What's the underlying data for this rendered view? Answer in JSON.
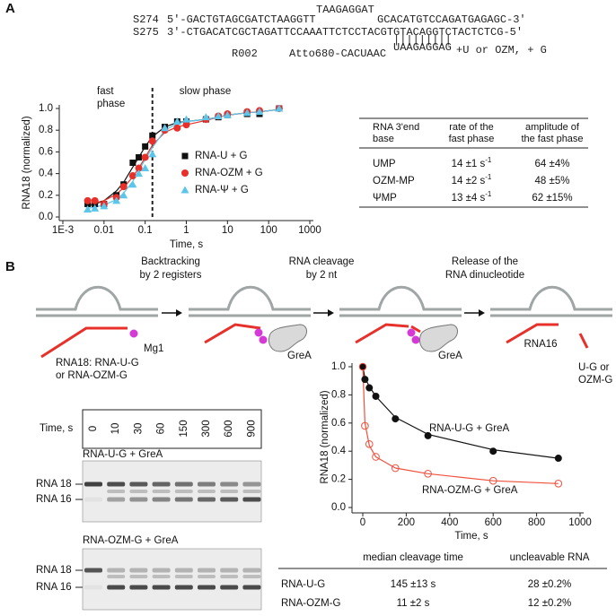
{
  "panel_labels": [
    "A",
    "B"
  ],
  "sequences": {
    "s274_name": "S274",
    "s274_left": "5'-GACTGTAGCGATCTAAGGTT",
    "s274_loop": "TAAGAGGAT",
    "s274_right": "GCACATGTCCAGATGAGAGC-3'",
    "s275_name": "S275",
    "s275": "3'-CTGACATCGCTAGATTCCAAATTCTCCTACGTGTACAGGTCTACTCTCG-5'",
    "pairs": "|||||||||",
    "r002_name": "R002",
    "r002_left": "Atto680-CACUAAC",
    "r002_right": "UAAGAGGAG",
    "additions": "+U or OZM, + G"
  },
  "chart_data": [
    {
      "type": "scatter",
      "xlabel": "Time, s",
      "ylabel": "RNA18 (normalized)",
      "xscale": "log",
      "fast_phase_label": [
        "fast",
        "phase"
      ],
      "slow_phase_label": "slow phase",
      "phase_divider_x": 0.15,
      "x": [
        0.004,
        0.006,
        0.01,
        0.02,
        0.03,
        0.05,
        0.07,
        0.1,
        0.15,
        0.3,
        0.6,
        1,
        3,
        6,
        10,
        30,
        60,
        180
      ],
      "series": [
        {
          "name": "RNA-U + G",
          "color": "#111111",
          "marker": "square",
          "values": [
            0.12,
            0.12,
            0.12,
            0.2,
            0.3,
            0.5,
            0.55,
            0.65,
            0.75,
            0.83,
            0.88,
            0.88,
            0.9,
            0.92,
            0.94,
            0.95,
            0.95,
            1.0
          ],
          "fit": [
            0.1,
            0.12,
            0.15,
            0.24,
            0.32,
            0.46,
            0.55,
            0.65,
            0.74,
            0.83,
            0.87,
            0.88,
            0.9,
            0.92,
            0.94,
            0.96,
            0.97,
            0.99
          ]
        },
        {
          "name": "RNA-OZM + G",
          "color": "#e8302a",
          "marker": "circle",
          "values": [
            0.15,
            0.15,
            0.12,
            0.18,
            0.28,
            0.38,
            0.45,
            0.55,
            0.7,
            0.8,
            0.82,
            0.85,
            0.9,
            0.93,
            0.95,
            0.97,
            0.98,
            1.0
          ],
          "fit": [
            0.12,
            0.13,
            0.15,
            0.21,
            0.27,
            0.37,
            0.45,
            0.55,
            0.66,
            0.78,
            0.83,
            0.85,
            0.89,
            0.92,
            0.94,
            0.96,
            0.97,
            0.99
          ]
        },
        {
          "name": "RNA-Ψ + G",
          "color": "#5cc6ea",
          "marker": "triangle",
          "values": [
            0.07,
            0.08,
            0.1,
            0.15,
            0.2,
            0.3,
            0.4,
            0.45,
            0.58,
            0.82,
            0.88,
            0.9,
            0.92,
            0.93,
            0.94,
            0.96,
            0.97,
            1.0
          ],
          "fit": [
            0.08,
            0.09,
            0.11,
            0.16,
            0.22,
            0.33,
            0.43,
            0.53,
            0.64,
            0.8,
            0.86,
            0.88,
            0.9,
            0.92,
            0.94,
            0.96,
            0.97,
            0.99
          ]
        }
      ],
      "xlim": [
        0.001,
        1000
      ],
      "xticks": [
        {
          "value": 0.001,
          "label": "1E-3"
        },
        0.01,
        0.1,
        1,
        10,
        100,
        1000
      ],
      "ylim": [
        0,
        1.0
      ],
      "yticks": [
        {
          "value": 0,
          "label": "0.0"
        },
        {
          "value": 0.2,
          "label": "0.2"
        },
        {
          "value": 0.4,
          "label": "0.4"
        },
        {
          "value": 0.6,
          "label": "0.6"
        },
        {
          "value": 0.8,
          "label": "0.8"
        },
        {
          "value": 1.0,
          "label": "1.0"
        }
      ],
      "legend": "right"
    },
    {
      "type": "scatter",
      "xlabel": "Time, s",
      "ylabel": "RNA18 (normalized)",
      "xscale": "linear",
      "x": [
        0,
        10,
        30,
        60,
        150,
        300,
        600,
        900
      ],
      "series": [
        {
          "name": "RNA-U-G + GreA",
          "color": "#111111",
          "marker": "circle",
          "values": [
            1.0,
            0.91,
            0.85,
            0.79,
            0.63,
            0.51,
            0.4,
            0.35
          ],
          "fit": [
            1.0,
            0.92,
            0.86,
            0.79,
            0.64,
            0.52,
            0.41,
            0.35
          ]
        },
        {
          "name": "RNA-OZM-G + GreA",
          "color": "#f0503c",
          "marker": "circle-open",
          "values": [
            1.0,
            0.58,
            0.45,
            0.36,
            0.28,
            0.24,
            0.19,
            0.17
          ],
          "fit": [
            1.0,
            0.6,
            0.44,
            0.36,
            0.28,
            0.24,
            0.19,
            0.17
          ]
        }
      ],
      "xlim": [
        0,
        1000
      ],
      "xticks": [
        0,
        200,
        400,
        600,
        800,
        1000
      ],
      "ylim": [
        0,
        1.0
      ],
      "yticks": [
        {
          "value": 0,
          "label": "0.0"
        },
        {
          "value": 0.2,
          "label": "0.2"
        },
        {
          "value": 0.4,
          "label": "0.4"
        },
        {
          "value": 0.6,
          "label": "0.6"
        },
        {
          "value": 0.8,
          "label": "0.8"
        },
        {
          "value": 1.0,
          "label": "1.0"
        }
      ],
      "legend": "inline"
    }
  ],
  "table_a": {
    "header": [
      [
        "RNA 3'end",
        "base"
      ],
      [
        "rate of the",
        "fast phase"
      ],
      [
        "amplitude of",
        "the fast phase"
      ]
    ],
    "rows": [
      [
        {
          "text": "UMP"
        },
        {
          "text": "14 ±1 s",
          "sup": "-1"
        },
        {
          "text": "64 ±4%"
        }
      ],
      [
        {
          "text": "OZM-MP"
        },
        {
          "text": "14 ±2 s",
          "sup": "-1"
        },
        {
          "text": "48 ±5%"
        }
      ],
      [
        {
          "text": "ΨMP"
        },
        {
          "text": "13 ±4 s",
          "sup": "-1"
        },
        {
          "text": "62 ±15%"
        }
      ]
    ]
  },
  "diagram": {
    "steps": [
      [
        "Backtracking",
        "by 2 registers"
      ],
      [
        "RNA cleavage",
        "by 2 nt"
      ],
      [
        "Release of the",
        "RNA dinucleotide"
      ]
    ],
    "mg": "Mg1",
    "rna18": [
      "RNA18: RNA-U-G",
      "or RNA-OZM-G"
    ],
    "grea": [
      "GreA",
      "GreA"
    ],
    "rna16": "RNA16",
    "product": [
      "U-G or",
      "OZM-G"
    ]
  },
  "gel": {
    "time_label": "Time, s",
    "times": [
      0,
      10,
      30,
      60,
      150,
      300,
      600,
      900
    ],
    "panels": [
      {
        "title": "RNA-U-G + GreA",
        "bands": [
          "RNA 18",
          "RNA 16"
        ]
      },
      {
        "title": "RNA-OZM-G + GreA",
        "bands": [
          "RNA 18",
          "RNA 16"
        ]
      }
    ]
  },
  "table_b": {
    "header": [
      "median cleavage time",
      "uncleavable RNA"
    ],
    "rows": [
      [
        "RNA-U-G",
        "145 ±13 s",
        "28 ±0.2%"
      ],
      [
        "RNA-OZM-G",
        "11 ±2 s",
        "12 ±0.2%"
      ]
    ]
  }
}
